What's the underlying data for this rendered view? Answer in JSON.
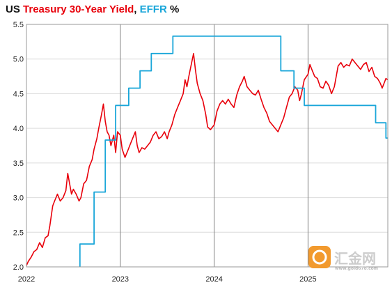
{
  "colors": {
    "treasury": "#e8000b",
    "effr": "#1aa6d9",
    "text": "#111111",
    "grid": "#dcdcdc",
    "year_line": "#808080"
  },
  "watermark": {
    "text": "汇金网",
    "sub": "www.gold678.com"
  },
  "chart_data": {
    "type": "line",
    "title": {
      "part1": "US ",
      "part2": "Treasury 30-Year Yield",
      "part3": ", ",
      "part4": "EFFR",
      "part5": " %"
    },
    "xlabel": "",
    "ylabel": "",
    "xlim": [
      2022.0,
      2025.85
    ],
    "ylim": [
      2.0,
      5.5
    ],
    "y_ticks": [
      "2.0",
      "2.5",
      "3.0",
      "3.5",
      "4.0",
      "4.5",
      "5.0",
      "5.5"
    ],
    "x_ticks": [
      {
        "label": "2022",
        "x": 2022.0
      },
      {
        "label": "2023",
        "x": 2023.0
      },
      {
        "label": "2024",
        "x": 2024.0
      },
      {
        "label": "2025",
        "x": 2025.0
      }
    ],
    "grid": true,
    "legend": "none (series named in title)",
    "series": [
      {
        "name": "Treasury 30-Year Yield",
        "color": "#e8000b",
        "points": [
          [
            2022.0,
            2.02
          ],
          [
            2022.02,
            2.08
          ],
          [
            2022.05,
            2.14
          ],
          [
            2022.08,
            2.22
          ],
          [
            2022.11,
            2.25
          ],
          [
            2022.14,
            2.35
          ],
          [
            2022.17,
            2.28
          ],
          [
            2022.2,
            2.42
          ],
          [
            2022.23,
            2.45
          ],
          [
            2022.25,
            2.6
          ],
          [
            2022.28,
            2.88
          ],
          [
            2022.3,
            2.95
          ],
          [
            2022.33,
            3.05
          ],
          [
            2022.36,
            2.95
          ],
          [
            2022.39,
            3.0
          ],
          [
            2022.42,
            3.1
          ],
          [
            2022.44,
            3.35
          ],
          [
            2022.46,
            3.2
          ],
          [
            2022.48,
            3.05
          ],
          [
            2022.5,
            3.12
          ],
          [
            2022.53,
            3.05
          ],
          [
            2022.56,
            2.95
          ],
          [
            2022.58,
            3.0
          ],
          [
            2022.61,
            3.2
          ],
          [
            2022.64,
            3.25
          ],
          [
            2022.67,
            3.45
          ],
          [
            2022.7,
            3.55
          ],
          [
            2022.72,
            3.7
          ],
          [
            2022.75,
            3.85
          ],
          [
            2022.77,
            4.0
          ],
          [
            2022.8,
            4.2
          ],
          [
            2022.82,
            4.35
          ],
          [
            2022.84,
            4.1
          ],
          [
            2022.86,
            3.95
          ],
          [
            2022.88,
            3.9
          ],
          [
            2022.9,
            3.75
          ],
          [
            2022.93,
            3.9
          ],
          [
            2022.95,
            3.65
          ],
          [
            2022.97,
            3.95
          ],
          [
            2023.0,
            3.9
          ],
          [
            2023.02,
            3.7
          ],
          [
            2023.05,
            3.58
          ],
          [
            2023.08,
            3.68
          ],
          [
            2023.1,
            3.75
          ],
          [
            2023.13,
            3.85
          ],
          [
            2023.16,
            3.95
          ],
          [
            2023.18,
            3.75
          ],
          [
            2023.2,
            3.65
          ],
          [
            2023.23,
            3.72
          ],
          [
            2023.26,
            3.7
          ],
          [
            2023.29,
            3.75
          ],
          [
            2023.32,
            3.8
          ],
          [
            2023.35,
            3.9
          ],
          [
            2023.38,
            3.95
          ],
          [
            2023.41,
            3.85
          ],
          [
            2023.44,
            3.88
          ],
          [
            2023.47,
            3.95
          ],
          [
            2023.5,
            3.85
          ],
          [
            2023.52,
            3.95
          ],
          [
            2023.55,
            4.05
          ],
          [
            2023.58,
            4.2
          ],
          [
            2023.61,
            4.3
          ],
          [
            2023.64,
            4.4
          ],
          [
            2023.67,
            4.5
          ],
          [
            2023.69,
            4.7
          ],
          [
            2023.71,
            4.6
          ],
          [
            2023.73,
            4.75
          ],
          [
            2023.76,
            4.95
          ],
          [
            2023.78,
            5.08
          ],
          [
            2023.8,
            4.85
          ],
          [
            2023.82,
            4.65
          ],
          [
            2023.85,
            4.5
          ],
          [
            2023.88,
            4.4
          ],
          [
            2023.91,
            4.2
          ],
          [
            2023.93,
            4.02
          ],
          [
            2023.96,
            3.98
          ],
          [
            2024.0,
            4.05
          ],
          [
            2024.03,
            4.25
          ],
          [
            2024.06,
            4.35
          ],
          [
            2024.09,
            4.4
          ],
          [
            2024.12,
            4.35
          ],
          [
            2024.15,
            4.42
          ],
          [
            2024.18,
            4.35
          ],
          [
            2024.21,
            4.3
          ],
          [
            2024.24,
            4.48
          ],
          [
            2024.27,
            4.6
          ],
          [
            2024.3,
            4.68
          ],
          [
            2024.32,
            4.75
          ],
          [
            2024.35,
            4.6
          ],
          [
            2024.38,
            4.55
          ],
          [
            2024.41,
            4.5
          ],
          [
            2024.44,
            4.48
          ],
          [
            2024.47,
            4.55
          ],
          [
            2024.5,
            4.42
          ],
          [
            2024.53,
            4.3
          ],
          [
            2024.56,
            4.22
          ],
          [
            2024.59,
            4.1
          ],
          [
            2024.62,
            4.05
          ],
          [
            2024.65,
            4.0
          ],
          [
            2024.68,
            3.95
          ],
          [
            2024.71,
            4.05
          ],
          [
            2024.74,
            4.15
          ],
          [
            2024.77,
            4.3
          ],
          [
            2024.8,
            4.45
          ],
          [
            2024.83,
            4.5
          ],
          [
            2024.86,
            4.6
          ],
          [
            2024.89,
            4.55
          ],
          [
            2024.91,
            4.4
          ],
          [
            2024.93,
            4.5
          ],
          [
            2024.96,
            4.7
          ],
          [
            2025.0,
            4.78
          ],
          [
            2025.02,
            4.92
          ],
          [
            2025.04,
            4.85
          ],
          [
            2025.07,
            4.75
          ],
          [
            2025.1,
            4.72
          ],
          [
            2025.13,
            4.6
          ],
          [
            2025.16,
            4.58
          ],
          [
            2025.19,
            4.68
          ],
          [
            2025.22,
            4.62
          ],
          [
            2025.25,
            4.5
          ],
          [
            2025.28,
            4.6
          ],
          [
            2025.3,
            4.75
          ],
          [
            2025.32,
            4.9
          ],
          [
            2025.35,
            4.95
          ],
          [
            2025.38,
            4.88
          ],
          [
            2025.41,
            4.92
          ],
          [
            2025.44,
            4.9
          ],
          [
            2025.47,
            5.0
          ],
          [
            2025.5,
            4.95
          ],
          [
            2025.53,
            4.9
          ],
          [
            2025.56,
            4.85
          ],
          [
            2025.59,
            4.92
          ],
          [
            2025.62,
            4.95
          ],
          [
            2025.65,
            4.82
          ],
          [
            2025.68,
            4.88
          ],
          [
            2025.71,
            4.75
          ],
          [
            2025.74,
            4.72
          ],
          [
            2025.77,
            4.65
          ],
          [
            2025.79,
            4.58
          ],
          [
            2025.81,
            4.65
          ],
          [
            2025.83,
            4.72
          ],
          [
            2025.85,
            4.7
          ]
        ]
      },
      {
        "name": "EFFR",
        "color": "#1aa6d9",
        "step": true,
        "points": [
          [
            2022.57,
            2.0
          ],
          [
            2022.57,
            2.33
          ],
          [
            2022.72,
            2.33
          ],
          [
            2022.72,
            3.08
          ],
          [
            2022.84,
            3.08
          ],
          [
            2022.84,
            3.83
          ],
          [
            2022.95,
            3.83
          ],
          [
            2022.95,
            4.33
          ],
          [
            2023.09,
            4.33
          ],
          [
            2023.09,
            4.58
          ],
          [
            2023.21,
            4.58
          ],
          [
            2023.21,
            4.83
          ],
          [
            2023.33,
            4.83
          ],
          [
            2023.33,
            5.08
          ],
          [
            2023.56,
            5.08
          ],
          [
            2023.56,
            5.33
          ],
          [
            2024.71,
            5.33
          ],
          [
            2024.71,
            4.83
          ],
          [
            2024.85,
            4.83
          ],
          [
            2024.85,
            4.58
          ],
          [
            2024.96,
            4.58
          ],
          [
            2024.96,
            4.33
          ],
          [
            2025.72,
            4.33
          ],
          [
            2025.72,
            4.08
          ],
          [
            2025.83,
            4.08
          ],
          [
            2025.83,
            3.86
          ],
          [
            2025.85,
            3.86
          ]
        ]
      }
    ]
  }
}
